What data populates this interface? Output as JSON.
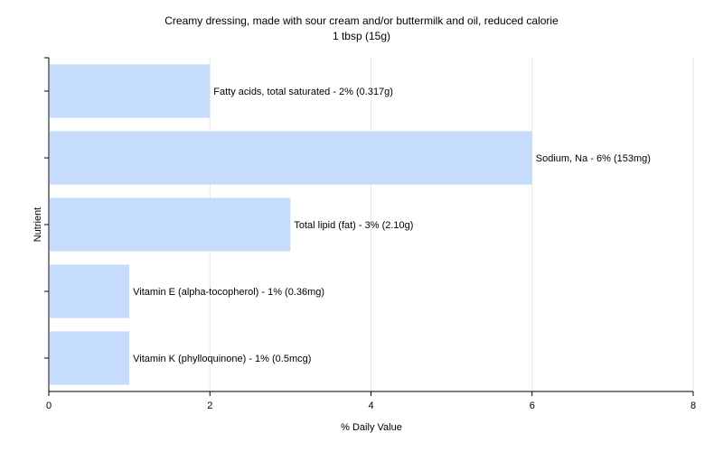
{
  "chart_data": {
    "type": "bar",
    "orientation": "horizontal",
    "title": "Creamy dressing, made with sour cream and/or buttermilk and oil, reduced calorie",
    "subtitle": "1 tbsp (15g)",
    "xlabel": "% Daily Value",
    "ylabel": "Nutrient",
    "xlim": [
      0,
      8
    ],
    "xticks": [
      "0",
      "2",
      "4",
      "6",
      "8"
    ],
    "grid": true,
    "bar_color": "#c6dcfc",
    "categories": [
      "Fatty acids, total saturated",
      "Sodium, Na",
      "Total lipid (fat)",
      "Vitamin E (alpha-tocopherol)",
      "Vitamin K (phylloquinone)"
    ],
    "values": [
      2,
      6,
      3,
      1,
      1
    ],
    "data_labels": [
      "Fatty acids, total saturated - 2% (0.317g)",
      "Sodium, Na - 6% (153mg)",
      "Total lipid (fat) - 3% (2.10g)",
      "Vitamin E (alpha-tocopherol) - 1% (0.36mg)",
      "Vitamin K (phylloquinone) - 1% (0.5mcg)"
    ]
  }
}
